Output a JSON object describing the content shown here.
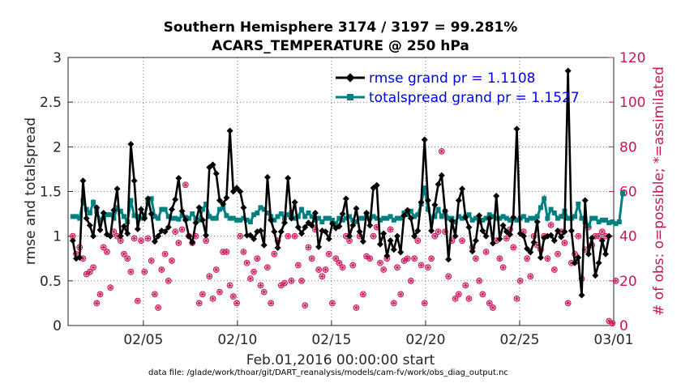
{
  "chart_data": {
    "type": "line",
    "title": "Southern Hemisphere 3174 / 3197 = 99.281%",
    "subtitle": "ACARS_TEMPERATURE @ 250 hPa",
    "xlabel": "Feb.01,2016 00:00:00 start",
    "ylabel": "rmse and totalspread",
    "y2label": "# of obs: o=possible; *=assimilated",
    "footnote": "data file: /glade/work/thoar/git/DART_reanalysis/models/cam-fv/work/obs_diag_output.nc",
    "x_ticks": [
      "02/05",
      "02/10",
      "02/15",
      "02/20",
      "02/25",
      "03/01"
    ],
    "x_tick_days": [
      4,
      9,
      14,
      19,
      24,
      29
    ],
    "y_ticks": [
      "0",
      "0.5",
      "1",
      "1.5",
      "2",
      "2.5",
      "3"
    ],
    "y2_ticks": [
      "0",
      "20",
      "40",
      "60",
      "80",
      "100",
      "120"
    ],
    "xlim_days": [
      0,
      29
    ],
    "ylim": [
      0,
      3
    ],
    "y2lim": [
      0,
      120
    ],
    "grid": true,
    "legend_position": "top-right",
    "colors": {
      "rmse": "#000000",
      "totalspread": "#008080",
      "obs": "#c8165a"
    },
    "series": [
      {
        "name": "rmse grand pr = 1.1108",
        "color": "#000000",
        "marker": "diamond",
        "values": [
          0.95,
          0.75,
          0.76,
          1.62,
          1.2,
          1.12,
          1.0,
          1.32,
          1.07,
          1.26,
          1.02,
          1.0,
          1.29,
          1.53,
          1.0,
          1.11,
          1.03,
          2.03,
          1.62,
          1.08,
          1.3,
          1.2,
          1.42,
          1.25,
          0.94,
          1.0,
          1.06,
          1.05,
          1.1,
          1.3,
          1.41,
          1.65,
          1.28,
          1.18,
          1.0,
          0.93,
          1.15,
          1.32,
          1.18,
          1.01,
          1.77,
          1.8,
          1.7,
          1.4,
          1.36,
          1.43,
          2.18,
          1.5,
          1.54,
          1.5,
          1.32,
          1.01,
          1.01,
          0.97,
          1.05,
          1.06,
          0.9,
          1.66,
          1.18,
          1.05,
          0.87,
          1.05,
          1.15,
          1.65,
          1.2,
          1.38,
          1.1,
          1.03,
          1.1,
          1.15,
          1.12,
          1.26,
          0.88,
          1.06,
          1.05,
          0.97,
          1.14,
          1.09,
          1.11,
          1.25,
          1.42,
          1.0,
          1.12,
          1.31,
          1.05,
          0.94,
          1.26,
          1.12,
          1.54,
          1.57,
          0.91,
          1.03,
          0.78,
          0.95,
          0.85,
          1.0,
          0.82,
          1.23,
          1.29,
          1.2,
          1.0,
          1.06,
          1.38,
          2.08,
          1.4,
          1.06,
          1.35,
          1.58,
          1.68,
          1.28,
          0.74,
          1.17,
          1.0,
          1.4,
          1.53,
          1.21,
          1.1,
          0.83,
          0.95,
          1.23,
          1.06,
          1.0,
          1.2,
          0.92,
          1.45,
          0.97,
          1.12,
          1.05,
          1.02,
          1.21,
          2.2,
          1.03,
          1.0,
          0.86,
          0.82,
          0.93,
          1.16,
          0.76,
          0.98,
          1.0,
          1.01,
          0.95,
          1.06,
          0.99,
          1.05,
          2.85,
          1.06,
          0.7,
          0.76,
          0.34,
          1.4,
          0.8,
          0.98,
          0.56,
          0.7,
          0.95,
          0.8,
          1.0
        ]
      },
      {
        "name": "totalspread grand pr = 1.1527",
        "color": "#008080",
        "marker": "square",
        "values": [
          1.22,
          1.22,
          1.2,
          1.4,
          1.3,
          1.26,
          1.38,
          1.28,
          1.18,
          1.2,
          1.24,
          1.24,
          1.2,
          1.32,
          1.28,
          1.22,
          1.16,
          1.4,
          1.23,
          1.22,
          1.2,
          1.23,
          1.38,
          1.42,
          1.22,
          1.2,
          1.3,
          1.3,
          1.22,
          1.2,
          1.2,
          1.19,
          1.23,
          1.21,
          1.2,
          1.25,
          1.2,
          1.18,
          1.3,
          1.36,
          1.22,
          1.2,
          1.2,
          1.3,
          1.32,
          1.23,
          1.2,
          1.2,
          1.18,
          1.18,
          1.2,
          1.18,
          1.16,
          1.24,
          1.26,
          1.32,
          1.3,
          1.26,
          1.22,
          1.18,
          1.22,
          1.25,
          1.2,
          1.24,
          1.26,
          1.2,
          1.22,
          1.3,
          1.22,
          1.26,
          1.22,
          1.18,
          1.2,
          1.16,
          1.2,
          1.2,
          1.18,
          1.14,
          1.2,
          1.18,
          1.2,
          1.22,
          1.18,
          1.16,
          1.2,
          1.2,
          1.22,
          1.2,
          1.22,
          1.2,
          1.18,
          1.2,
          1.2,
          1.22,
          1.18,
          1.2,
          1.2,
          1.26,
          1.24,
          1.28,
          1.22,
          1.24,
          1.36,
          1.54,
          1.3,
          1.2,
          1.22,
          1.3,
          1.22,
          1.28,
          1.2,
          1.2,
          1.16,
          1.22,
          1.2,
          1.22,
          1.24,
          1.18,
          1.2,
          1.16,
          1.18,
          1.2,
          1.24,
          1.22,
          1.2,
          1.2,
          1.22,
          1.2,
          1.18,
          1.2,
          1.18,
          1.2,
          1.22,
          1.18,
          1.2,
          1.2,
          1.22,
          1.32,
          1.42,
          1.2,
          1.3,
          1.26,
          1.2,
          1.22,
          1.28,
          1.2,
          1.2,
          1.22,
          1.36,
          1.2,
          1.16,
          1.12,
          1.2,
          1.2,
          1.16,
          1.18,
          1.18,
          1.15,
          1.16,
          1.14,
          1.16,
          1.48
        ]
      },
      {
        "name": "# of obs possible",
        "axis": "right",
        "marker": "circle",
        "values": [
          40,
          32,
          35,
          30,
          23,
          24,
          26,
          10,
          14,
          35,
          33,
          17,
          42,
          40,
          38,
          32,
          30,
          24,
          39,
          11,
          38,
          24,
          39,
          29,
          14,
          8,
          25,
          32,
          20,
          29,
          42,
          37,
          43,
          63,
          40,
          37,
          40,
          10,
          14,
          38,
          22,
          12,
          25,
          15,
          33,
          33,
          18,
          13,
          10,
          40,
          33,
          28,
          21,
          24,
          30,
          18,
          15,
          26,
          10,
          32,
          38,
          18,
          19,
          40,
          20,
          40,
          27,
          20,
          9,
          35,
          30,
          43,
          25,
          22,
          25,
          32,
          10,
          30,
          28,
          26,
          40,
          38,
          27,
          8,
          40,
          14,
          31,
          30,
          40,
          44,
          28,
          25,
          30,
          43,
          10,
          26,
          14,
          29,
          30,
          20,
          30,
          38,
          27,
          10,
          26,
          30,
          40,
          42,
          78,
          42,
          22,
          38,
          12,
          14,
          38,
          18,
          12,
          35,
          30,
          20,
          14,
          33,
          10,
          8,
          38,
          30,
          26,
          39,
          43,
          35,
          12,
          20,
          42,
          30,
          22,
          40,
          36,
          34,
          40,
          30,
          45,
          25,
          32,
          42,
          37,
          10,
          28,
          32,
          40,
          21,
          34,
          44,
          36,
          40,
          40,
          42,
          40,
          2,
          1,
          20
        ]
      }
    ]
  }
}
